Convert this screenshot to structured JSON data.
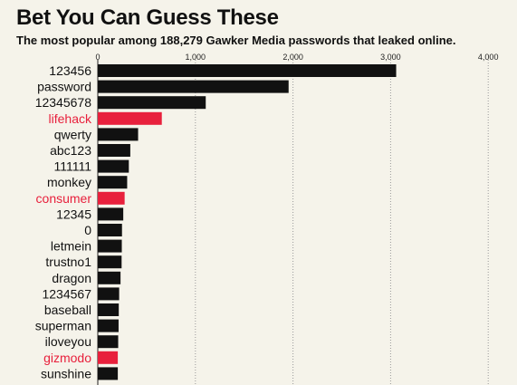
{
  "chart_data": {
    "type": "bar",
    "orientation": "horizontal",
    "title": "Bet You Can Guess These",
    "subtitle": "The most popular among 188,279 Gawker Media passwords that leaked online.",
    "xlabel": "",
    "ylabel": "",
    "xlim": [
      0,
      4000
    ],
    "x_ticks": [
      0,
      1000,
      2000,
      3000,
      4000
    ],
    "x_tick_labels": [
      "0",
      "1,000",
      "2,000",
      "3,000",
      "4,000"
    ],
    "tick_position": "top",
    "grid": "vertical-dotted",
    "categories": [
      "123456",
      "password",
      "12345678",
      "lifehack",
      "qwerty",
      "abc123",
      "111111",
      "monkey",
      "consumer",
      "12345",
      "0",
      "letmein",
      "trustno1",
      "dragon",
      "1234567",
      "baseball",
      "superman",
      "iloveyou",
      "gizmodo",
      "sunshine"
    ],
    "values": [
      3057,
      1955,
      1106,
      656,
      413,
      333,
      318,
      301,
      275,
      261,
      248,
      246,
      244,
      233,
      219,
      215,
      213,
      209,
      205,
      205
    ],
    "highlighted": [
      "lifehack",
      "consumer",
      "gizmodo"
    ],
    "colors": {
      "bar": "#111111",
      "highlight": "#e8203c",
      "label": "#111111",
      "highlight_label": "#e8203c",
      "grid": "#9a9a9a",
      "background": "#f5f3ea"
    }
  }
}
